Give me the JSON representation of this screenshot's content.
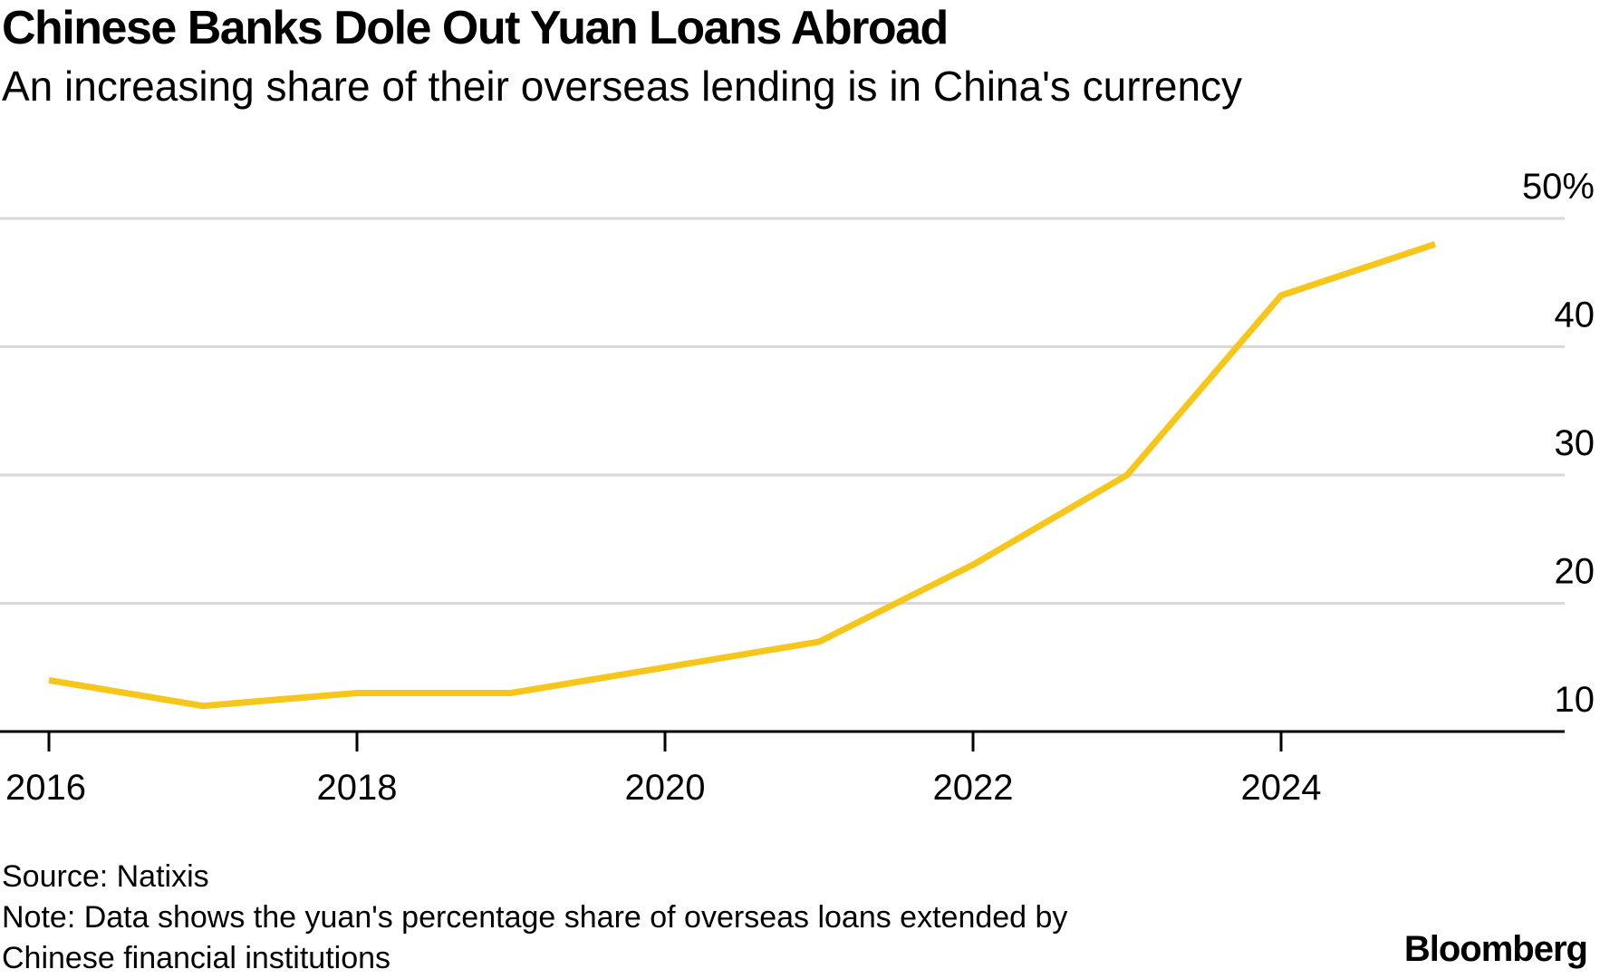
{
  "header": {
    "title": "Chinese Banks Dole Out Yuan Loans Abroad",
    "subtitle": "An increasing share of their overseas lending is in China's currency"
  },
  "footer": {
    "source": "Source: Natixis",
    "note_line1": "Note: Data shows the yuan's percentage share of overseas loans extended by",
    "note_line2": "Chinese financial institutions",
    "brand": "Bloomberg"
  },
  "colors": {
    "line": "#f6c61b",
    "grid": "#d9d9d9",
    "axis": "#000000"
  },
  "chart_data": {
    "type": "line",
    "title": "Chinese Banks Dole Out Yuan Loans Abroad",
    "subtitle": "An increasing share of their overseas lending is in China's currency",
    "xlabel": "",
    "ylabel": "",
    "x": [
      2016,
      2017,
      2018,
      2019,
      2020,
      2021,
      2022,
      2023,
      2024,
      2025
    ],
    "series": [
      {
        "values": [
          14,
          12,
          13,
          13,
          15,
          17,
          23,
          30,
          44,
          48
        ]
      }
    ],
    "x_ticks": [
      2016,
      2018,
      2020,
      2022,
      2024
    ],
    "x_tick_labels": [
      "2016",
      "2018",
      "2020",
      "2022",
      "2024"
    ],
    "y_ticks": [
      10,
      20,
      30,
      40,
      50
    ],
    "y_tick_labels": [
      "10",
      "20",
      "30",
      "40",
      "50%"
    ],
    "xlim": [
      2016,
      2025.9
    ],
    "ylim": [
      10,
      50
    ],
    "y_axis_side": "right",
    "grid": true
  }
}
